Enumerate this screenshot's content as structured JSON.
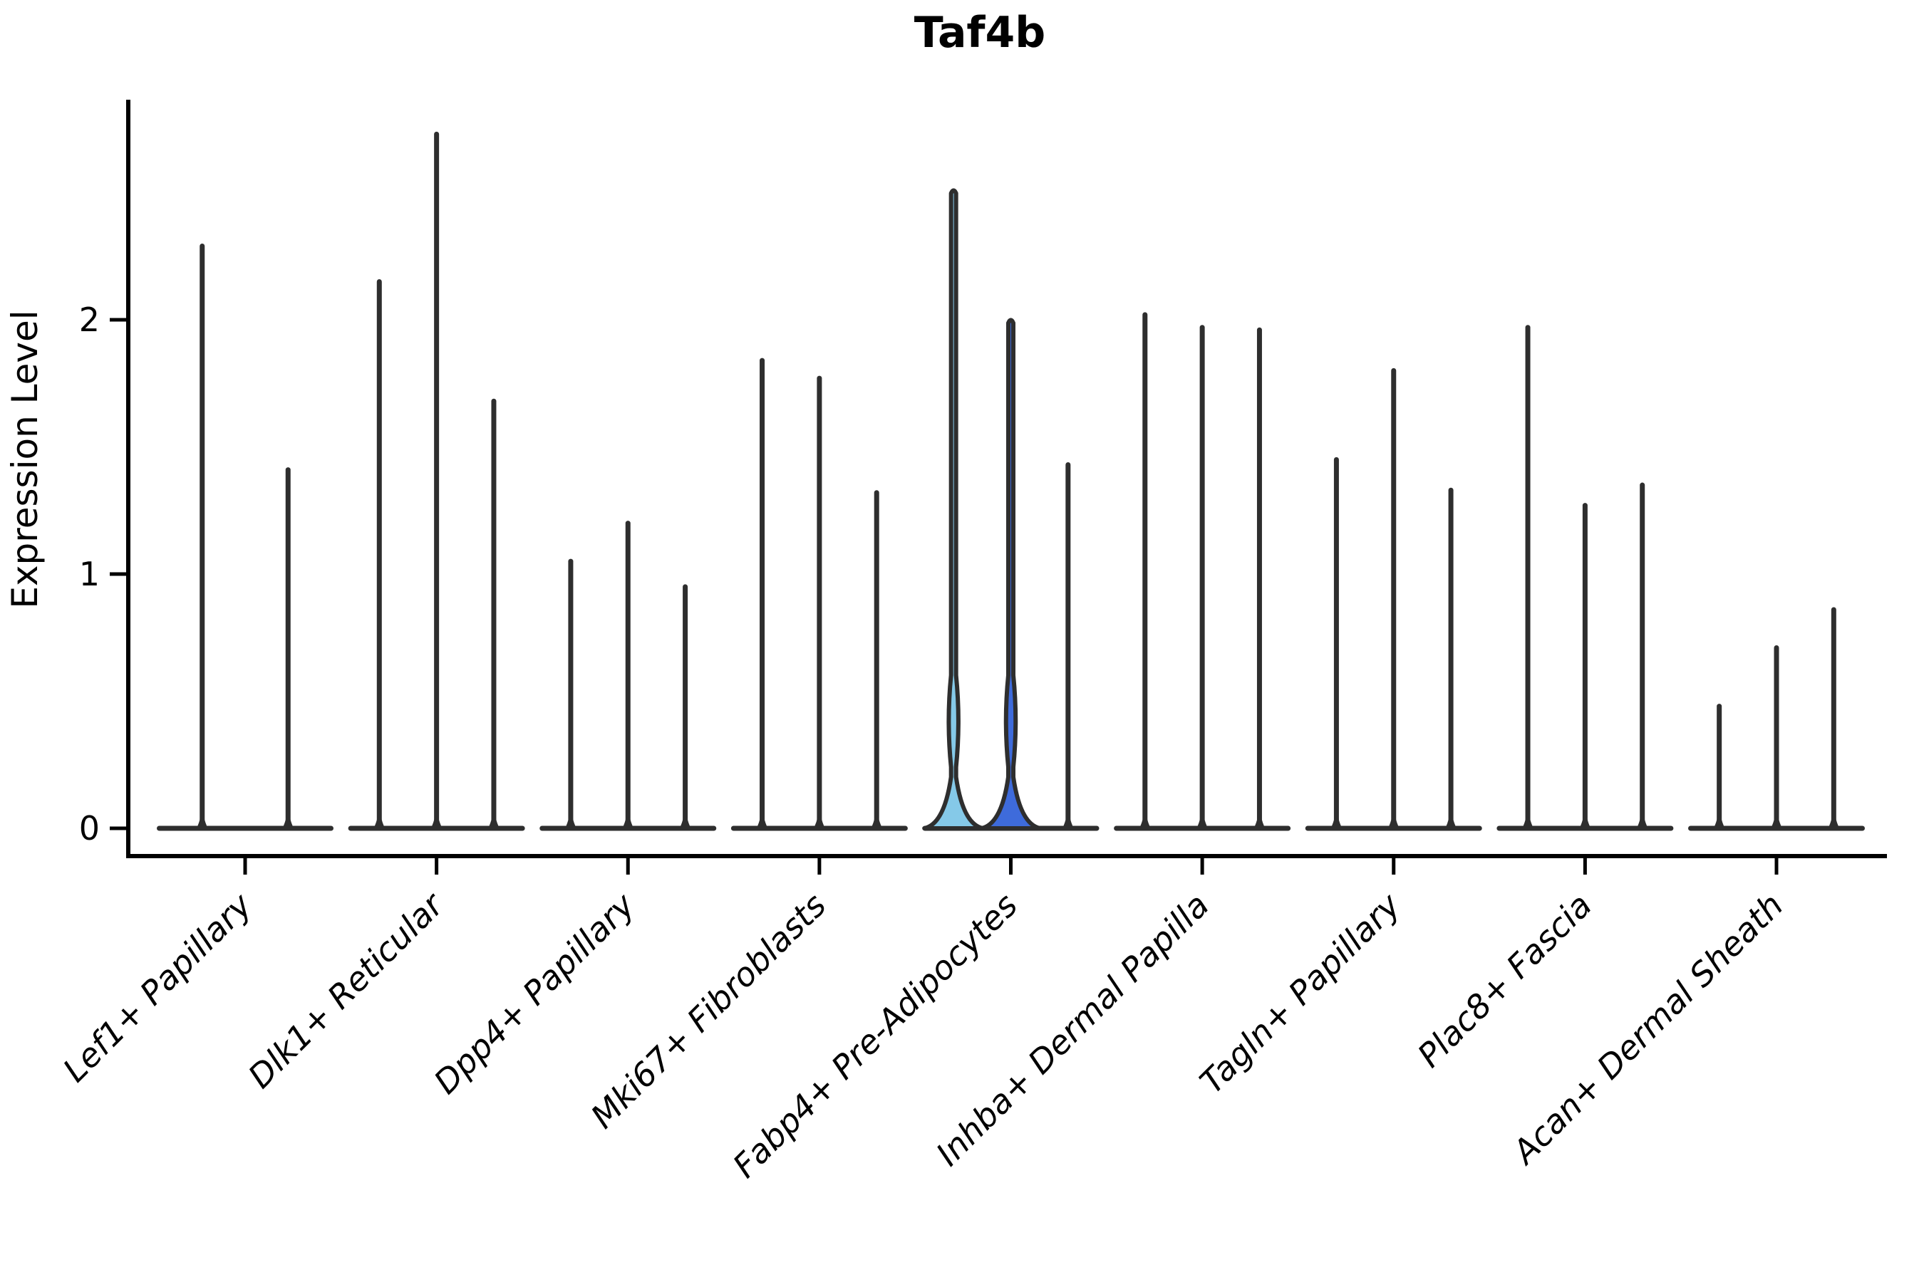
{
  "title": "Taf4b",
  "y_axis": {
    "label": "Expression Level",
    "ticks": [
      {
        "label": "0",
        "value": 0
      },
      {
        "label": "1",
        "value": 1
      },
      {
        "label": "2",
        "value": 2
      }
    ]
  },
  "colors": {
    "violin_outline": "#2e2e2e",
    "axis": "#000000",
    "highlight_light_blue": "#85C9E8",
    "highlight_royal_blue": "#3E6BDB"
  },
  "chart_data": {
    "type": "violin",
    "title": "Taf4b",
    "xlabel": "",
    "ylabel": "Expression Level",
    "ylim": [
      -0.1,
      2.87
    ],
    "yticks": [
      0,
      1,
      2
    ],
    "grid": false,
    "legend": "none",
    "categories": [
      "Lef1+ Papillary",
      "Dlk1+ Reticular",
      "Dpp4+ Papillary",
      "Mki67+ Fibroblasts",
      "Fabp4+ Pre-Adipocytes",
      "Inhba+ Dermal Papilla",
      "Tagln+ Papillary",
      "Plac8+ Fascia",
      "Acan+ Dermal Sheath"
    ],
    "series": [
      {
        "category": "Lef1+ Papillary",
        "violins": [
          {
            "max": 2.29,
            "fill": null
          },
          {
            "max": 1.41,
            "fill": null
          }
        ]
      },
      {
        "category": "Dlk1+ Reticular",
        "violins": [
          {
            "max": 2.15,
            "fill": null
          },
          {
            "max": 2.73,
            "fill": null
          },
          {
            "max": 1.68,
            "fill": null
          }
        ]
      },
      {
        "category": "Dpp4+ Papillary",
        "violins": [
          {
            "max": 1.05,
            "fill": null
          },
          {
            "max": 1.2,
            "fill": null
          },
          {
            "max": 0.95,
            "fill": null
          }
        ]
      },
      {
        "category": "Mki67+ Fibroblasts",
        "violins": [
          {
            "max": 1.84,
            "fill": null
          },
          {
            "max": 1.77,
            "fill": null
          },
          {
            "max": 1.32,
            "fill": null
          }
        ]
      },
      {
        "category": "Fabp4+ Pre-Adipocytes",
        "violins": [
          {
            "max": 2.52,
            "fill": "#85C9E8",
            "bulge": true
          },
          {
            "max": 2.01,
            "fill": "#3E6BDB",
            "bulge": true
          },
          {
            "max": 1.43,
            "fill": null
          }
        ]
      },
      {
        "category": "Inhba+ Dermal Papilla",
        "violins": [
          {
            "max": 2.02,
            "fill": null
          },
          {
            "max": 1.97,
            "fill": null
          },
          {
            "max": 1.96,
            "fill": null
          }
        ]
      },
      {
        "category": "Tagln+ Papillary",
        "violins": [
          {
            "max": 1.45,
            "fill": null
          },
          {
            "max": 1.8,
            "fill": null
          },
          {
            "max": 1.33,
            "fill": null
          }
        ]
      },
      {
        "category": "Plac8+ Fascia",
        "violins": [
          {
            "max": 1.97,
            "fill": null
          },
          {
            "max": 1.27,
            "fill": null
          },
          {
            "max": 1.35,
            "fill": null
          }
        ]
      },
      {
        "category": "Acan+ Dermal Sheath",
        "violins": [
          {
            "max": 0.48,
            "fill": null
          },
          {
            "max": 0.71,
            "fill": null
          },
          {
            "max": 0.86,
            "fill": null
          }
        ]
      }
    ]
  }
}
